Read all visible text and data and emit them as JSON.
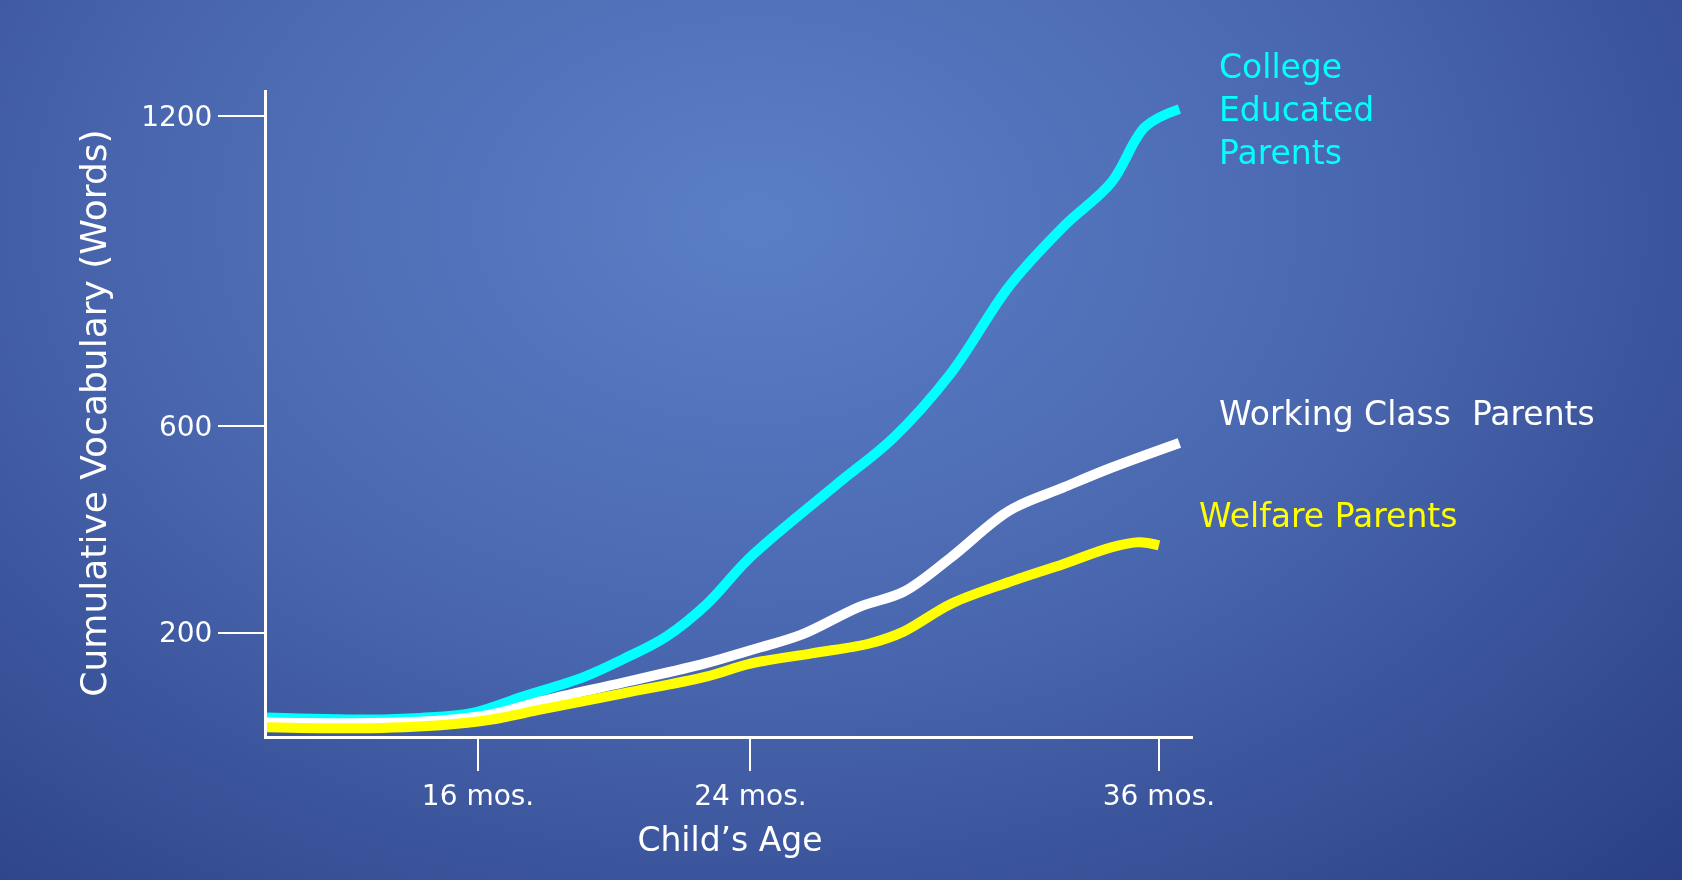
{
  "chart_data": {
    "type": "line",
    "xlabel": "Child’s Age",
    "ylabel": "Cumulative Vocabulary (Words)",
    "xlim": [
      9.8,
      37
    ],
    "xticks": [
      {
        "value": 16,
        "label": "16 mos."
      },
      {
        "value": 24,
        "label": "24 mos."
      },
      {
        "value": 36,
        "label": "36 mos."
      }
    ],
    "ylim": [
      0,
      1250
    ],
    "yticks": [
      200,
      600,
      1200
    ],
    "series": [
      {
        "name": "College\nEducated\nParents",
        "color": "#00ffff",
        "x": [
          9.8,
          12.8,
          14.3,
          15.8,
          17.3,
          19.1,
          20.3,
          21.5,
          22.7,
          24,
          26.5,
          28.2,
          29.9,
          31.6,
          33.2,
          34.6,
          35.6,
          36.6
        ],
        "values": [
          36,
          32,
          35,
          44,
          76,
          114,
          150,
          191,
          254,
          346,
          485,
          577,
          703,
          870,
          986,
          1071,
          1179,
          1213
        ]
      },
      {
        "name": "Working Class  Parents",
        "color": "#ffffff",
        "x": [
          9.8,
          12.8,
          14.9,
          16.4,
          17.9,
          20.3,
          22.7,
          24,
          25.5,
          27.2,
          28.5,
          29.9,
          31.6,
          33.2,
          34.6,
          36.6
        ],
        "values": [
          26,
          25,
          30,
          42,
          68,
          104,
          141,
          166,
          196,
          250,
          279,
          346,
          436,
          481,
          519,
          567
        ]
      },
      {
        "name": "Welfare Parents",
        "color": "#ffff00",
        "x": [
          9.8,
          12.5,
          14.9,
          16.4,
          17.9,
          20.3,
          22.7,
          24,
          25.8,
          27.5,
          28.5,
          29.9,
          31.6,
          33.2,
          34.6,
          35.4,
          36
        ],
        "values": [
          17,
          15,
          21,
          32,
          52,
          83,
          115,
          140,
          160,
          179,
          202,
          256,
          298,
          333,
          365,
          375,
          369
        ]
      }
    ]
  }
}
